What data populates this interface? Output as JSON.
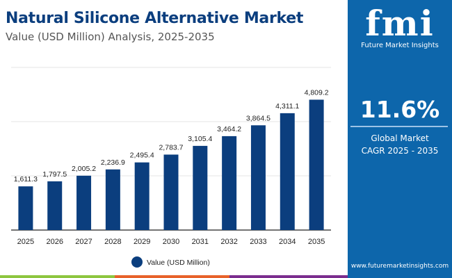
{
  "header": {
    "title": "Natural Silicone Alternative Market",
    "subtitle": "Value (USD Million) Analysis, 2025-2035"
  },
  "sidebar": {
    "logo_text": "fmi",
    "brand": "Future Market Insights",
    "cagr": "11.6%",
    "cagr_label_1": "Global Market",
    "cagr_label_2": "CAGR 2025 - 2035",
    "url": "www.futuremarketinsights.com",
    "bg_color": "#0d66ab"
  },
  "chart_data": {
    "type": "bar",
    "categories": [
      "2025",
      "2026",
      "2027",
      "2028",
      "2029",
      "2030",
      "2031",
      "2032",
      "2033",
      "2034",
      "2035"
    ],
    "series": [
      {
        "name": "Value (USD Million)",
        "values": [
          1611.3,
          1797.5,
          2005.2,
          2236.9,
          2495.4,
          2783.7,
          3105.4,
          3464.2,
          3864.5,
          4311.1,
          4809.2
        ],
        "labels": [
          "1,611.3",
          "1,797.5",
          "2,005.2",
          "2,236.9",
          "2,495.4",
          "2,783.7",
          "3,105.4",
          "3,464.2",
          "3,864.5",
          "4,311.1",
          "4,809.2"
        ],
        "color": "#0b3e7e"
      }
    ],
    "ylim": [
      0,
      6000
    ],
    "grid": true,
    "legend": "bottom",
    "y_axis_labels_shown": false
  },
  "footer_colors": [
    "#8dc63f",
    "#e8622a",
    "#7b2d8e"
  ]
}
